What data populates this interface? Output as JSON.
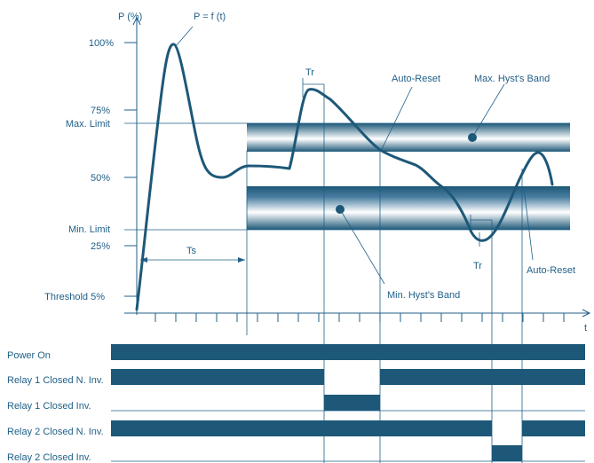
{
  "y_axis_label": "P (%)",
  "x_axis_label": "t",
  "curve_label": "P = f (t)",
  "y_ticks": {
    "p100": "100%",
    "p75": "75%",
    "max_limit": "Max. Limit",
    "p50": "50%",
    "min_limit": "Min. Limit",
    "p25": "25%",
    "threshold": "Threshold 5%"
  },
  "annotations": {
    "tr_top": "Tr",
    "tr_bottom": "Tr",
    "ts": "Ts",
    "auto_reset_top": "Auto-Reset",
    "auto_reset_bottom": "Auto-Reset",
    "max_band": "Max. Hyst's Band",
    "min_band": "Min. Hyst's Band"
  },
  "signals": [
    "Power On",
    "Relay 1 Closed N. Inv.",
    "Relay 1 Closed Inv.",
    "Relay 2 Closed N. Inv.",
    "Relay 2 Closed Inv."
  ],
  "colors": {
    "line": "#1f5f87",
    "curve": "#1d5878",
    "band_dark": "#1d5878",
    "band_light": "#ffffff"
  }
}
